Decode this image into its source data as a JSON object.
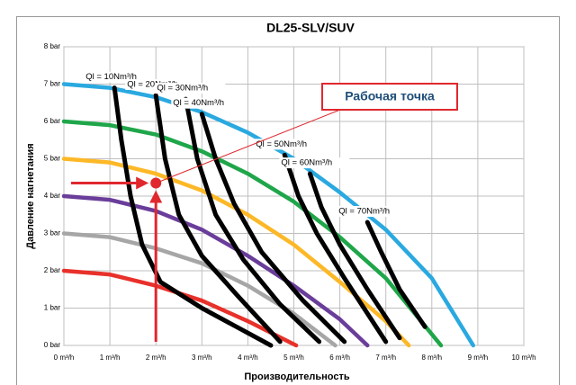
{
  "chart_data": {
    "type": "line",
    "title": "DL25-SLV/SUV",
    "x_label": "Производительность",
    "y_label": "Давление нагнетания",
    "xlim": [
      0,
      10
    ],
    "ylim": [
      0,
      8
    ],
    "grid": true,
    "xticks": [
      {
        "value": 0,
        "label": "0 m³/h"
      },
      {
        "value": 1,
        "label": "1 m³/h"
      },
      {
        "value": 2,
        "label": "2 m³/h"
      },
      {
        "value": 3,
        "label": "3 m³/h"
      },
      {
        "value": 4,
        "label": "4 m³/h"
      },
      {
        "value": 5,
        "label": "5 m³/h"
      },
      {
        "value": 6,
        "label": "6 m³/h"
      },
      {
        "value": 7,
        "label": "7 m³/h"
      },
      {
        "value": 8,
        "label": "8 m³/h"
      },
      {
        "value": 9,
        "label": "9 m³/h"
      },
      {
        "value": 10,
        "label": "10 m³/h"
      }
    ],
    "yticks": [
      {
        "value": 0,
        "label": "0 bar"
      },
      {
        "value": 1,
        "label": "1 bar"
      },
      {
        "value": 2,
        "label": "2 bar"
      },
      {
        "value": 3,
        "label": "3 bar"
      },
      {
        "value": 4,
        "label": "4 bar"
      },
      {
        "value": 5,
        "label": "5 bar"
      },
      {
        "value": 6,
        "label": "6 bar"
      },
      {
        "value": 7,
        "label": "7 bar"
      },
      {
        "value": 8,
        "label": "8 bar"
      }
    ],
    "series": [
      {
        "color": "#e8312a",
        "x": [
          0,
          1,
          2,
          3,
          4,
          5.05
        ],
        "values": [
          2,
          1.9,
          1.6,
          1.2,
          0.65,
          0
        ]
      },
      {
        "color": "#a6a6a6",
        "x": [
          0,
          1,
          2,
          3,
          4,
          5,
          5.9
        ],
        "values": [
          3,
          2.9,
          2.6,
          2.2,
          1.6,
          0.85,
          0
        ]
      },
      {
        "color": "#6a3d9a",
        "x": [
          0,
          1,
          2,
          3,
          4,
          5,
          6,
          6.6
        ],
        "values": [
          4,
          3.9,
          3.6,
          3.1,
          2.4,
          1.6,
          0.7,
          0
        ]
      },
      {
        "color": "#fdb827",
        "x": [
          0,
          1,
          2,
          3,
          4,
          5,
          6,
          7,
          7.5
        ],
        "values": [
          5,
          4.9,
          4.6,
          4.15,
          3.5,
          2.7,
          1.7,
          0.65,
          0
        ]
      },
      {
        "color": "#1fa64a",
        "x": [
          0,
          1,
          2,
          3,
          4,
          5,
          6,
          7,
          8,
          8.2
        ],
        "values": [
          6,
          5.9,
          5.65,
          5.2,
          4.6,
          3.85,
          2.9,
          1.8,
          0.3,
          0
        ]
      },
      {
        "color": "#2aa9e0",
        "x": [
          0,
          1,
          2,
          3,
          4,
          5,
          6,
          7,
          8,
          8.9
        ],
        "values": [
          7,
          6.9,
          6.65,
          6.25,
          5.7,
          5,
          4.1,
          3.1,
          1.8,
          0
        ]
      },
      {
        "name": "Ql = 10Nm³/h",
        "color": "#000000",
        "x": [
          1.1,
          1.25,
          1.45,
          1.7,
          2.1,
          3,
          4.5
        ],
        "values": [
          6.9,
          5.5,
          4,
          2.7,
          1.7,
          1,
          0
        ]
      },
      {
        "name": "Ql = 20Nm³/h",
        "color": "#000000",
        "x": [
          2,
          2.2,
          2.5,
          3,
          3.8,
          4.7
        ],
        "values": [
          6.7,
          5,
          3.5,
          2.4,
          1.3,
          0.1
        ]
      },
      {
        "name": "Ql = 30Nm³/h",
        "color": "#000000",
        "x": [
          2.65,
          2.9,
          3.3,
          3.9,
          4.7,
          5.55
        ],
        "values": [
          6.6,
          5,
          3.5,
          2.3,
          1.1,
          0.1
        ]
      },
      {
        "name": "Ql = 40Nm³/h",
        "color": "#000000",
        "x": [
          3,
          3.3,
          3.7,
          4.3,
          5.2,
          6.1
        ],
        "values": [
          6.2,
          5,
          3.8,
          2.5,
          1.2,
          0.1
        ]
      },
      {
        "name": "Ql = 50Nm³/h",
        "color": "#000000",
        "x": [
          4.8,
          5.1,
          5.5,
          6.1,
          7
        ],
        "values": [
          5.1,
          4,
          3,
          1.8,
          0.1
        ]
      },
      {
        "name": "Ql = 60Nm³/h",
        "color": "#000000",
        "x": [
          5.35,
          5.6,
          6,
          6.6,
          7.3
        ],
        "values": [
          4.6,
          3.7,
          2.7,
          1.5,
          0.2
        ]
      },
      {
        "name": "Ql = 70Nm³/h",
        "color": "#000000",
        "x": [
          6.6,
          6.9,
          7.3,
          7.85
        ],
        "values": [
          3.3,
          2.5,
          1.5,
          0.5
        ]
      }
    ],
    "working_point": {
      "label": "Рабочая точка",
      "x": 2,
      "y": 4.35,
      "color": "#e0282e"
    }
  }
}
